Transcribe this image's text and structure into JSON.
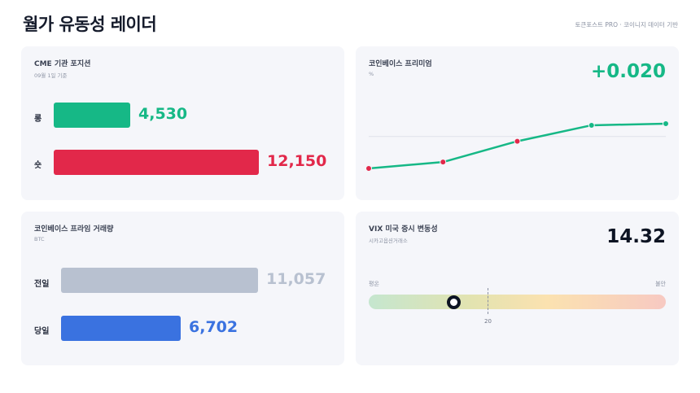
{
  "header": {
    "title": "월가 유동성 레이더",
    "source": "토큰포스트 PRO · 코이니지 데이터 기반"
  },
  "cme": {
    "title": "CME 기관 포지션",
    "subtitle": "09월 1일 기준",
    "long_label": "롱",
    "long_value": 4530,
    "long_text": "4,530",
    "short_label": "숏",
    "short_value": 12150,
    "short_text": "12,150",
    "long_color": "#16b886",
    "short_color": "#e2284a"
  },
  "premium": {
    "title": "코인베이스 프리미엄",
    "subtitle": "%",
    "value_text": "+0.020",
    "value_color": "#16b886",
    "chart_data": {
      "type": "line",
      "x": [
        1,
        2,
        3,
        4,
        5
      ],
      "values": [
        -0.04,
        -0.032,
        -0.006,
        0.014,
        0.016
      ],
      "baseline": 0,
      "point_colors": [
        "#e2284a",
        "#e2284a",
        "#e2284a",
        "#16b886",
        "#16b886"
      ],
      "line_color": "#16b886",
      "ylim": [
        -0.04,
        0.016
      ]
    }
  },
  "volume": {
    "title": "코인베이스 프라임 거래량",
    "subtitle": "BTC",
    "prev_label": "전일",
    "prev_value": 11057,
    "prev_text": "11,057",
    "today_label": "당일",
    "today_value": 6702,
    "today_text": "6,702",
    "prev_color": "#b8c1d0",
    "today_color": "#3a72e0"
  },
  "vix": {
    "title": "VIX 미국 증시 변동성",
    "subtitle": "시카고옵션거래소",
    "value": 14.32,
    "value_text": "14.32",
    "calm_label": "평온",
    "fear_label": "불안",
    "marker_value": 20,
    "marker_text": "20",
    "range": [
      0,
      50
    ]
  }
}
